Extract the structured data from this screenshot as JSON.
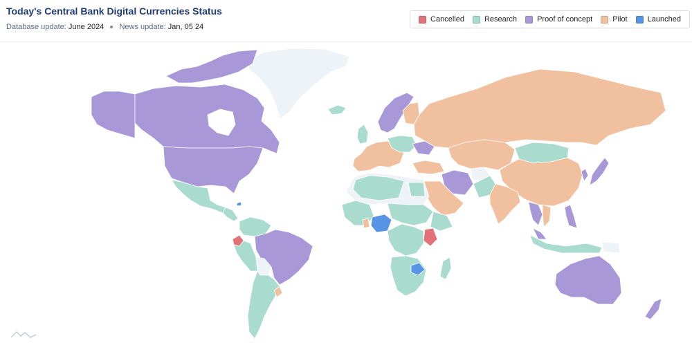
{
  "header": {
    "title": "Today's Central Bank Digital Currencies Status",
    "db_label": "Database update:",
    "db_value": "June 2024",
    "news_label": "News update:",
    "news_value": "Jan, 05 24"
  },
  "legend": [
    {
      "label": "Cancelled",
      "color": "#e3717a"
    },
    {
      "label": "Research",
      "color": "#a9dbce"
    },
    {
      "label": "Proof of concept",
      "color": "#a898d8"
    },
    {
      "label": "Pilot",
      "color": "#f1c09e"
    },
    {
      "label": "Launched",
      "color": "#5894e6"
    }
  ],
  "colors": {
    "no_data": "#eef3f8",
    "border": "#ffffff"
  },
  "icons": [
    "brand-logo-icon"
  ]
}
